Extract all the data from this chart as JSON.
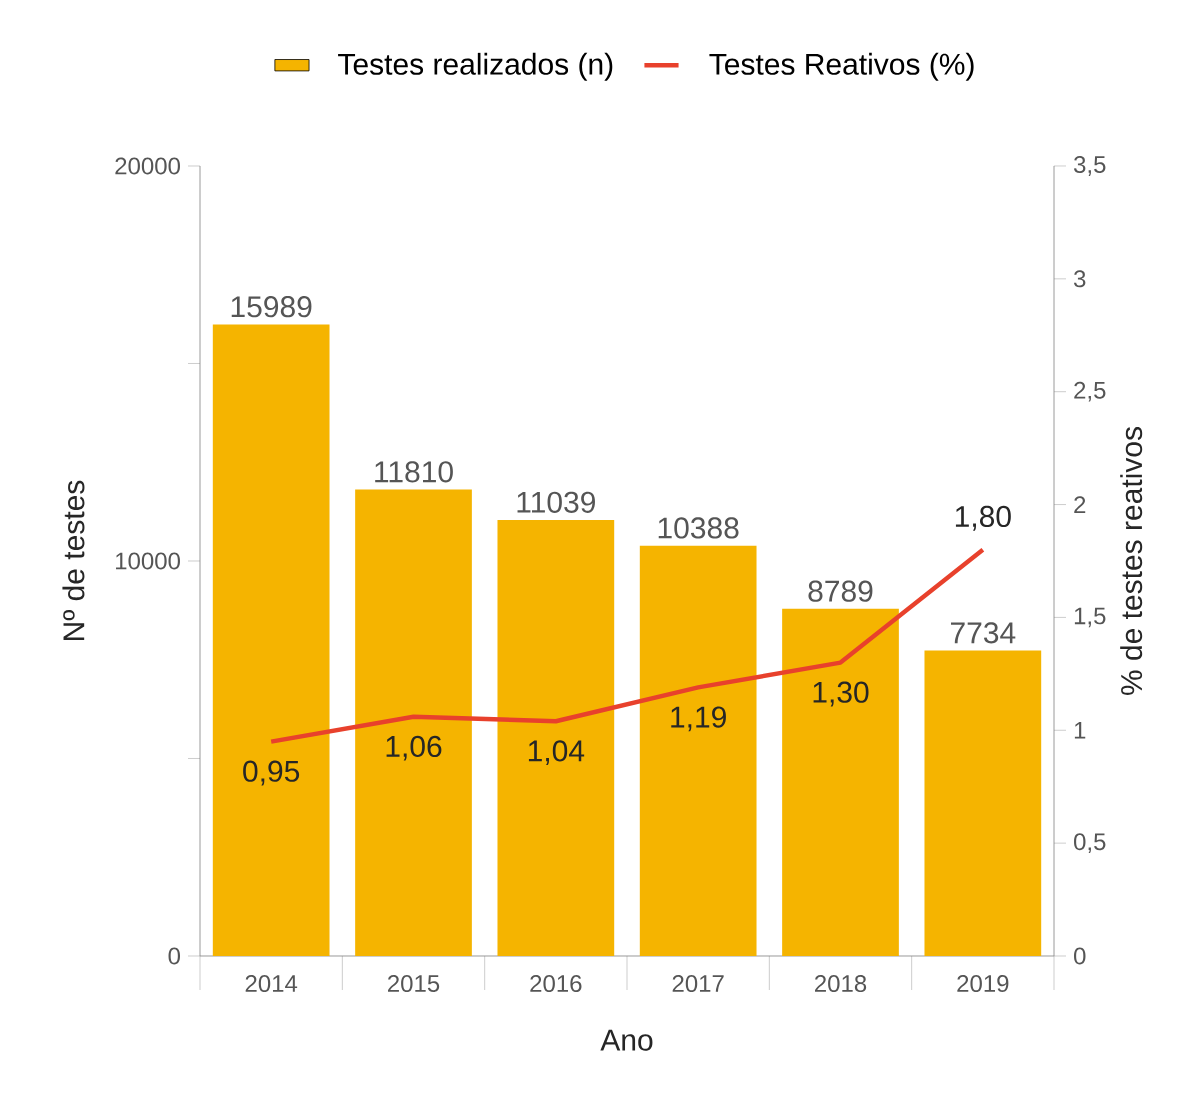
{
  "chart_data": {
    "type": "bar",
    "xlabel": "Ano",
    "ylabel": "Nº de testes",
    "y2label": "% de testes reativos",
    "categories": [
      "2014",
      "2015",
      "2016",
      "2017",
      "2018",
      "2019"
    ],
    "series": [
      {
        "name": "Testes realizados (n)",
        "color": "#f5b400",
        "values": [
          15989,
          11810,
          11039,
          10388,
          8789,
          7734
        ],
        "value_labels": [
          "15989",
          "11810",
          "11039",
          "10388",
          "8789",
          "7734"
        ]
      },
      {
        "name": "Testes Reativos (%)",
        "type": "line",
        "axis": "y2",
        "color": "#e8412c",
        "values": [
          0.95,
          1.06,
          1.04,
          1.19,
          1.3,
          1.8
        ],
        "value_labels": [
          "0,95",
          "1,06",
          "1,04",
          "1,19",
          "1,30",
          "1,80"
        ]
      }
    ],
    "ylim": [
      0,
      20000
    ],
    "yticks": [
      0,
      {
        "value": 5000,
        "label": null
      },
      10000,
      {
        "value": 15000,
        "label": null
      },
      20000
    ],
    "y2lim": [
      0,
      3.5
    ],
    "y2ticks": [
      0,
      {
        "value": 0.5,
        "label": "0,5"
      },
      1,
      {
        "value": 1.5,
        "label": "1,5"
      },
      2,
      {
        "value": 2.5,
        "label": "2,5"
      },
      3,
      {
        "value": 3.5,
        "label": "3,5"
      }
    ],
    "legend": "top",
    "grid": false
  }
}
